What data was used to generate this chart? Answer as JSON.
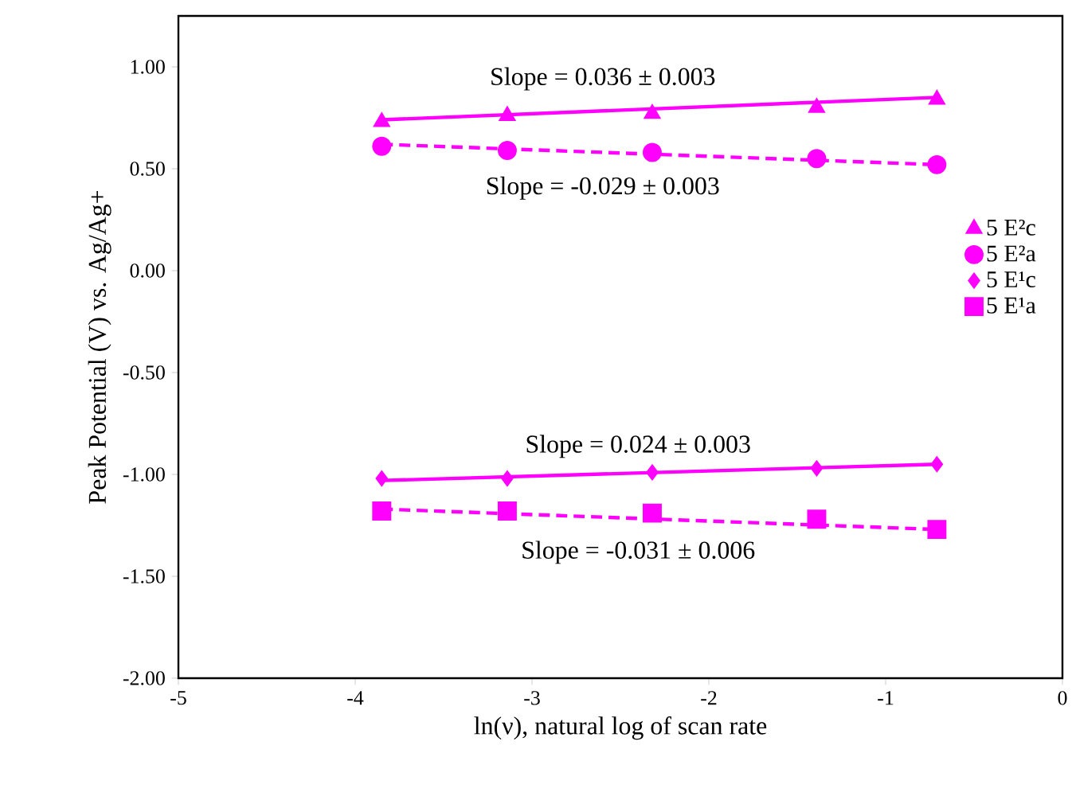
{
  "chart_data": {
    "type": "scatter",
    "xlabel": "ln(ν), natural log of scan rate",
    "ylabel": "Peak Potential (V) vs. Ag/Ag+",
    "xlim": [
      -5,
      0
    ],
    "ylim": [
      -2,
      1.25
    ],
    "xticks": [
      -5,
      -4,
      -3,
      -2,
      -1,
      0
    ],
    "yticks": [
      {
        "value": -2,
        "label": "-2.00"
      },
      {
        "value": -1.5,
        "label": "-1.50"
      },
      {
        "value": -1,
        "label": "-1.00"
      },
      {
        "value": -0.5,
        "label": "-0.50"
      },
      {
        "value": 0,
        "label": "0.00"
      },
      {
        "value": 0.5,
        "label": "0.50"
      },
      {
        "value": 1,
        "label": "1.00"
      }
    ],
    "legend": "right",
    "grid": false,
    "series": [
      {
        "name": "5 E²c",
        "color": "#ff00ff",
        "marker": "triangle",
        "x": [
          -3.85,
          -3.14,
          -2.32,
          -1.39,
          -0.71
        ],
        "values": [
          0.73,
          0.76,
          0.77,
          0.8,
          0.84
        ]
      },
      {
        "name": "5 E²a",
        "color": "#ff00ff",
        "marker": "circle",
        "x": [
          -3.85,
          -3.14,
          -2.32,
          -1.39,
          -0.71
        ],
        "values": [
          0.61,
          0.59,
          0.58,
          0.55,
          0.52
        ]
      },
      {
        "name": "5 E¹c",
        "color": "#ff00ff",
        "marker": "diamond",
        "x": [
          -3.85,
          -3.14,
          -2.32,
          -1.39,
          -0.71
        ],
        "values": [
          -1.02,
          -1.02,
          -0.99,
          -0.97,
          -0.95
        ]
      },
      {
        "name": "5 E¹a",
        "color": "#ff00ff",
        "marker": "square",
        "x": [
          -3.85,
          -3.14,
          -2.32,
          -1.39,
          -0.71
        ],
        "values": [
          -1.18,
          -1.18,
          -1.19,
          -1.22,
          -1.27
        ]
      },
      {
        "type": "line",
        "color": "#ff00ff",
        "line_style": "solid",
        "x": [
          -3.85,
          -0.71
        ],
        "values": [
          0.74,
          0.85
        ]
      },
      {
        "type": "line",
        "color": "#ff00ff",
        "line_style": "dashed",
        "x": [
          -3.85,
          -0.71
        ],
        "values": [
          0.62,
          0.52
        ]
      },
      {
        "type": "line",
        "color": "#ff00ff",
        "line_style": "solid",
        "x": [
          -3.85,
          -0.71
        ],
        "values": [
          -1.03,
          -0.95
        ]
      },
      {
        "type": "line",
        "color": "#ff00ff",
        "line_style": "dashed",
        "x": [
          -3.85,
          -0.71
        ],
        "values": [
          -1.17,
          -1.27
        ]
      }
    ],
    "annotations": [
      "Slope = 0.036 ± 0.003",
      "Slope = -0.029 ± 0.003",
      "Slope = 0.024 ± 0.003",
      "Slope = -0.031 ± 0.006"
    ]
  }
}
